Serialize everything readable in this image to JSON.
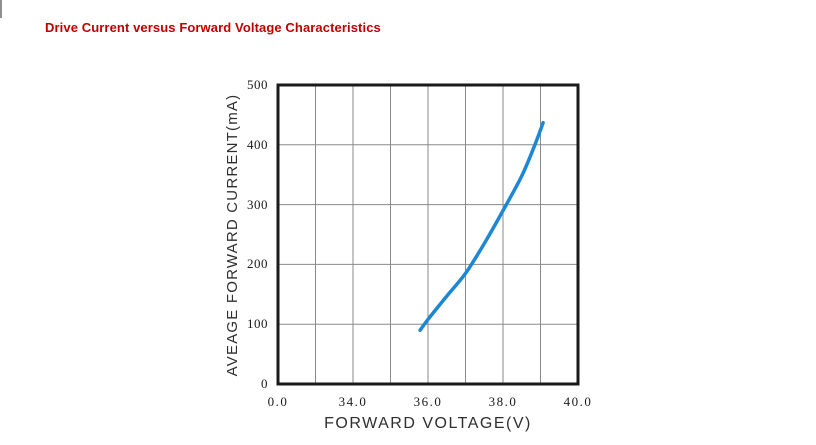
{
  "page": {
    "title": "Drive Current versus Forward Voltage Characteristics",
    "title_color": "#C00000",
    "background": "#FFFFFF"
  },
  "chart_data": {
    "type": "line",
    "title": "Drive Current versus Forward Voltage Characteristics",
    "xlabel": "FORWARD VOLTAGE(V)",
    "ylabel": "AVEAGE FORWARD CURRENT(mA)",
    "grid": true,
    "x_axis": {
      "type": "broken-linear",
      "gridline_count": 9,
      "volts_per_gridline": 1,
      "tick_labels": [
        {
          "text": "0.0",
          "gridline": 0,
          "value": 0
        },
        {
          "text": "34.0",
          "gridline": 2,
          "value": 34
        },
        {
          "text": "36.0",
          "gridline": 4,
          "value": 36
        },
        {
          "text": "38.0",
          "gridline": 6,
          "value": 38
        },
        {
          "text": "40.0",
          "gridline": 8,
          "value": 40
        }
      ]
    },
    "y_axis": {
      "min": 0,
      "max": 500,
      "ticks": [
        0,
        100,
        200,
        300,
        400,
        500
      ]
    },
    "series": [
      {
        "name": "forward-current-vs-voltage",
        "color": "#1D87D4",
        "line_width": 3.5,
        "points": [
          {
            "voltage": 35.79,
            "current": 90
          },
          {
            "voltage": 36.0,
            "current": 108
          },
          {
            "voltage": 36.5,
            "current": 147
          },
          {
            "voltage": 37.0,
            "current": 185
          },
          {
            "voltage": 37.5,
            "current": 235
          },
          {
            "voltage": 38.0,
            "current": 290
          },
          {
            "voltage": 38.5,
            "current": 348
          },
          {
            "voltage": 38.85,
            "current": 400
          },
          {
            "voltage": 39.07,
            "current": 437
          }
        ]
      }
    ],
    "colors": {
      "gridline": "#8A8A8A",
      "plot_border": "#1A1A1A",
      "tick_text": "#1A1A1A",
      "axis_label_text": "#2E2E2E"
    }
  }
}
